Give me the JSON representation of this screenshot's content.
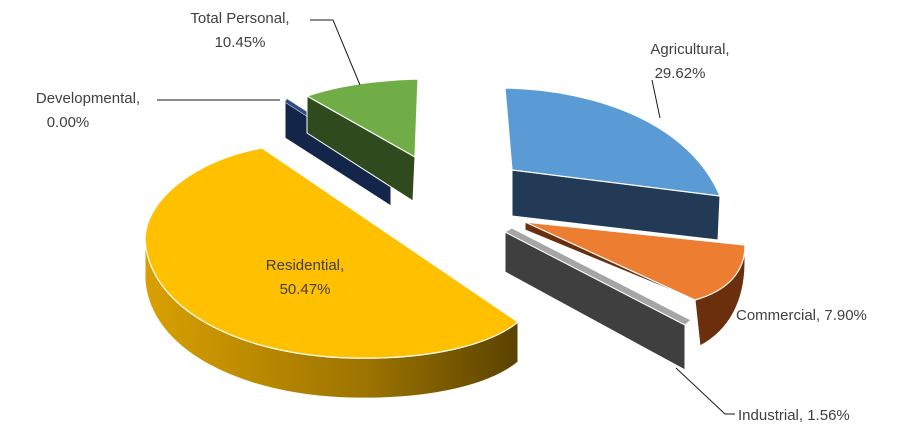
{
  "chart_data": {
    "type": "pie",
    "style": "3d-exploded",
    "legend": "none",
    "slices": [
      {
        "name": "Agricultural",
        "value": 29.62,
        "label_name": "Agricultural,",
        "label_value": "29.62%",
        "color": "#5B9BD5",
        "side_color": "#223A55"
      },
      {
        "name": "Commercial",
        "value": 7.9,
        "label_name": "Commercial,",
        "label_value": "7.90%",
        "color": "#ED7D31",
        "side_color": "#6B2F0E"
      },
      {
        "name": "Industrial",
        "value": 1.56,
        "label_name": "Industrial,",
        "label_value": "1.56%",
        "color": "#A5A5A5",
        "side_color": "#3F3F3F"
      },
      {
        "name": "Residential",
        "value": 50.47,
        "label_name": "Residential,",
        "label_value": "50.47%",
        "color": "#FFC000",
        "side_color": "#8A6400"
      },
      {
        "name": "Developmental",
        "value": 0.0,
        "label_name": "Developmental,",
        "label_value": "0.00%",
        "color": "#1F3864",
        "side_color": "#14254A"
      },
      {
        "name": "Total Personal",
        "value": 10.45,
        "label_name": "Total Personal,",
        "label_value": "10.45%",
        "color": "#70AD47",
        "side_color": "#2F4A1C"
      }
    ]
  }
}
